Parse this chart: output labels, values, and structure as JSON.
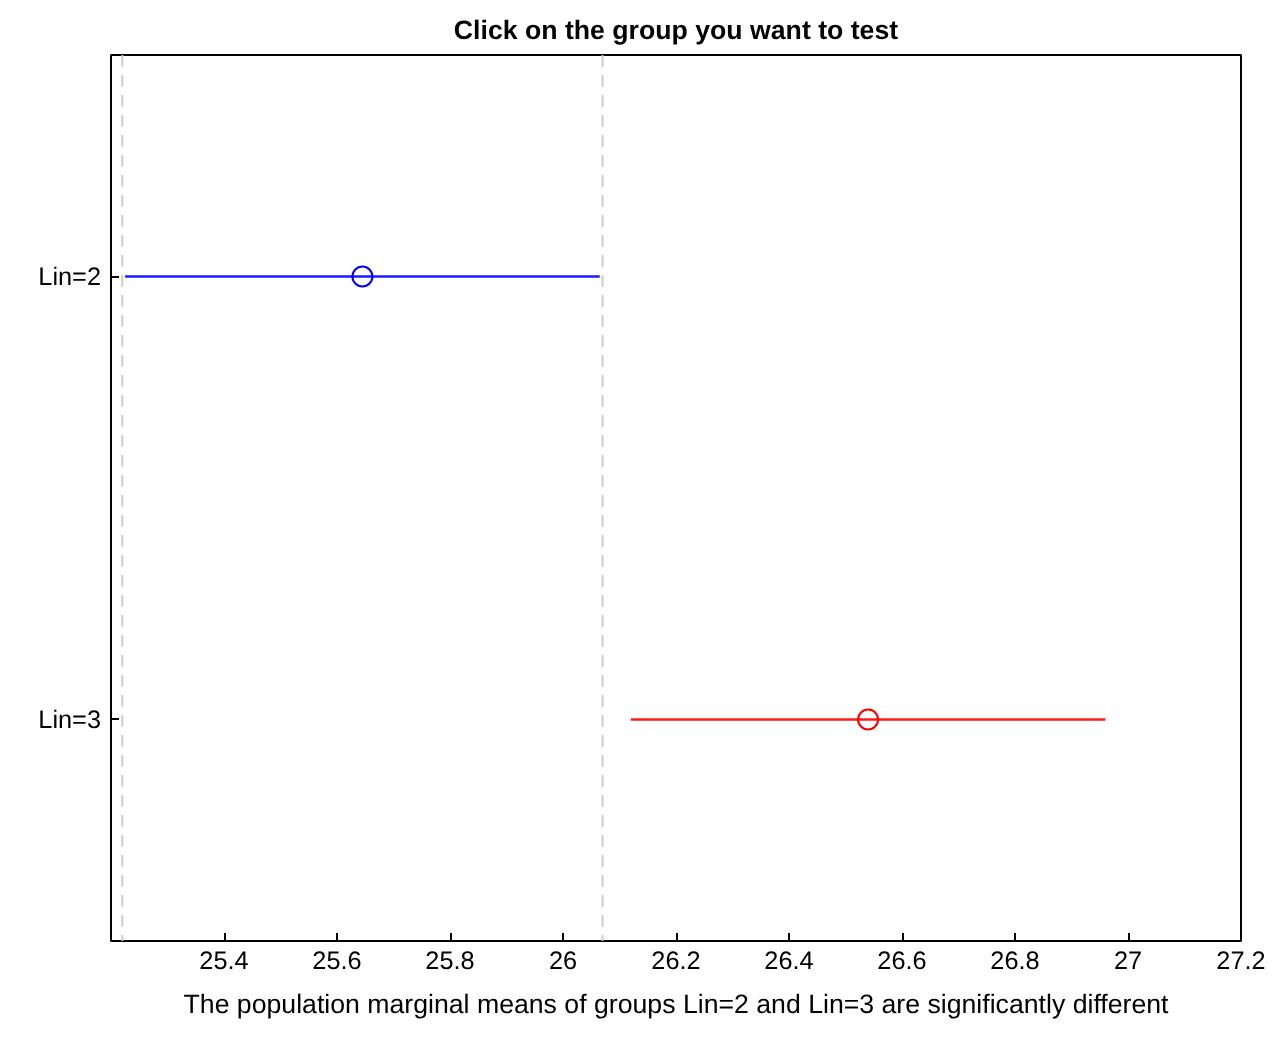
{
  "chart_data": {
    "type": "scatter",
    "orientation": "horizontal",
    "title": "Click on the group you want to test",
    "categories": [
      "Lin=2",
      "Lin=3"
    ],
    "values": [
      25.645,
      26.54
    ],
    "errors": [
      0.42,
      0.42
    ],
    "colors": [
      "#0000ff",
      "#ff0000"
    ],
    "marker": "circle",
    "xlim": [
      25.2,
      27.2
    ],
    "xticks": [
      25.4,
      25.6,
      25.8,
      26,
      26.2,
      26.4,
      26.6,
      26.8,
      27,
      27.2
    ],
    "ref_lines": [
      {
        "axis": "x",
        "value": 25.22,
        "color": "#cccccc",
        "line_style": "dashed"
      },
      {
        "axis": "x",
        "value": 26.07,
        "color": "#cccccc",
        "line_style": "dashed"
      }
    ],
    "annotations": [
      "The population marginal means of groups Lin=2 and Lin=3 are significantly different"
    ],
    "grid": false
  }
}
